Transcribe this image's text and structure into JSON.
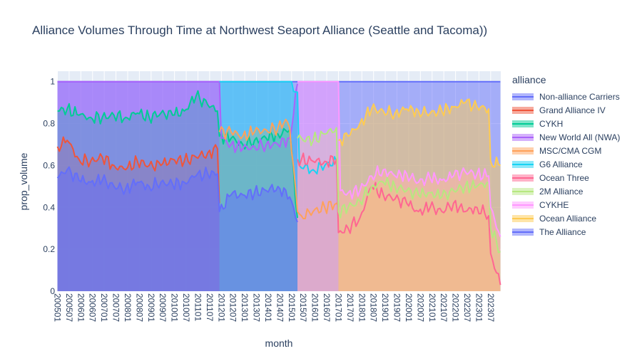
{
  "title": "Alliance Volumes Through Time at Northwest Seaport Alliance (Seattle and Tacoma))",
  "chart_data": {
    "type": "area",
    "title": "Alliance Volumes Through Time at Northwest Seaport Alliance (Seattle and Tacoma))",
    "xlabel": "month",
    "ylabel": "prop_volume",
    "ylim": [
      0,
      1.05
    ],
    "yticks": [
      0,
      0.2,
      0.4,
      0.6,
      0.8,
      1
    ],
    "ytick_labels": [
      "0",
      "0.2",
      "0.4",
      "0.6",
      "0.8",
      "1"
    ],
    "x_start": "200501",
    "x_end": "202312",
    "xtick_labels": [
      "200501",
      "200507",
      "200601",
      "200607",
      "200701",
      "200707",
      "200801",
      "200807",
      "200901",
      "200907",
      "201001",
      "201007",
      "201101",
      "201107",
      "201201",
      "201207",
      "201301",
      "201307",
      "201401",
      "201407",
      "201501",
      "201507",
      "201601",
      "201607",
      "201701",
      "201707",
      "201801",
      "201807",
      "201901",
      "201907",
      "202001",
      "202007",
      "202101",
      "202107",
      "202201",
      "202207",
      "202301",
      "202307"
    ],
    "stack_mode": "cumulative",
    "grid": true,
    "legend_title": "alliance",
    "legend_position": "right",
    "series": [
      {
        "name": "Non-alliance Carriers",
        "color": "#636efa",
        "knots": [
          [
            "200501",
            1.0
          ],
          [
            "202312",
            1.0
          ]
        ]
      },
      {
        "name": "Grand Alliance IV",
        "color": "#EF553B",
        "knots": [
          [
            "200501",
            0.69
          ],
          [
            "200506",
            0.72
          ],
          [
            "200512",
            0.63
          ],
          [
            "200606",
            0.62
          ],
          [
            "200612",
            0.64
          ],
          [
            "200706",
            0.6
          ],
          [
            "200712",
            0.58
          ],
          [
            "200806",
            0.62
          ],
          [
            "200812",
            0.6
          ],
          [
            "200906",
            0.6
          ],
          [
            "200912",
            0.63
          ],
          [
            "201006",
            0.62
          ],
          [
            "201012",
            0.64
          ],
          [
            "201106",
            0.66
          ],
          [
            "201111",
            0.68
          ],
          [
            "201112",
            0.42
          ]
        ]
      },
      {
        "name": "CYKH",
        "color": "#00cc96",
        "knots": [
          [
            "200501",
            0.86
          ],
          [
            "200506",
            0.87
          ],
          [
            "200512",
            0.84
          ],
          [
            "200606",
            0.83
          ],
          [
            "200612",
            0.83
          ],
          [
            "200706",
            0.84
          ],
          [
            "200712",
            0.83
          ],
          [
            "200806",
            0.85
          ],
          [
            "200812",
            0.83
          ],
          [
            "200906",
            0.85
          ],
          [
            "200912",
            0.84
          ],
          [
            "201006",
            0.86
          ],
          [
            "201012",
            0.93
          ],
          [
            "201106",
            0.89
          ],
          [
            "201111",
            0.86
          ],
          [
            "201112",
            0.74
          ],
          [
            "201206",
            0.73
          ],
          [
            "201212",
            0.7
          ],
          [
            "201306",
            0.72
          ],
          [
            "201312",
            0.73
          ],
          [
            "201406",
            0.75
          ],
          [
            "201412",
            0.77
          ],
          [
            "201504",
            0.35
          ]
        ]
      },
      {
        "name": "New World All (NWA)",
        "color": "#ab63fa",
        "knots": [
          [
            "200501",
            1.0
          ],
          [
            "201112",
            1.0
          ],
          [
            "201201",
            0.73
          ],
          [
            "201206",
            0.7
          ],
          [
            "201212",
            0.68
          ],
          [
            "201306",
            0.69
          ],
          [
            "201312",
            0.7
          ],
          [
            "201406",
            0.7
          ],
          [
            "201412",
            0.73
          ],
          [
            "201504",
            0.99
          ]
        ]
      },
      {
        "name": "MSC/CMA CGM",
        "color": "#FFA15A",
        "knots": [
          [
            "201112",
            0.76
          ],
          [
            "201206",
            0.76
          ],
          [
            "201212",
            0.74
          ],
          [
            "201306",
            0.76
          ],
          [
            "201312",
            0.77
          ],
          [
            "201406",
            0.78
          ],
          [
            "201410",
            0.82
          ],
          [
            "201412",
            0.78
          ],
          [
            "201504",
            0.38
          ],
          [
            "201506",
            0.36
          ],
          [
            "201512",
            0.38
          ],
          [
            "201606",
            0.4
          ],
          [
            "201612",
            0.42
          ],
          [
            "201701",
            0.41
          ]
        ]
      },
      {
        "name": "G6 Alliance",
        "color": "#19d3f3",
        "knots": [
          [
            "201112",
            1.0
          ],
          [
            "201412",
            1.0
          ],
          [
            "201504",
            0.95
          ],
          [
            "201505",
            0.6
          ],
          [
            "201512",
            0.58
          ],
          [
            "201606",
            0.6
          ],
          [
            "201612",
            0.62
          ],
          [
            "201701",
            0.4
          ]
        ]
      },
      {
        "name": "Ocean Three",
        "color": "#FF6692",
        "knots": [
          [
            "201504",
            0.63
          ],
          [
            "201512",
            0.62
          ],
          [
            "201606",
            0.62
          ],
          [
            "201612",
            0.63
          ],
          [
            "201701",
            0.28
          ],
          [
            "201706",
            0.3
          ],
          [
            "201712",
            0.35
          ],
          [
            "201806",
            0.5
          ],
          [
            "201812",
            0.46
          ],
          [
            "201906",
            0.44
          ],
          [
            "201912",
            0.42
          ],
          [
            "202006",
            0.38
          ],
          [
            "202012",
            0.4
          ],
          [
            "202106",
            0.38
          ],
          [
            "202112",
            0.42
          ],
          [
            "202206",
            0.38
          ],
          [
            "202212",
            0.4
          ],
          [
            "202306",
            0.36
          ],
          [
            "202307",
            0.18
          ],
          [
            "202312",
            0.03
          ]
        ]
      },
      {
        "name": "2M Alliance",
        "color": "#B6E880",
        "knots": [
          [
            "201504",
            0.73
          ],
          [
            "201512",
            0.72
          ],
          [
            "201606",
            0.75
          ],
          [
            "201612",
            0.78
          ],
          [
            "201701",
            0.38
          ],
          [
            "201706",
            0.4
          ],
          [
            "201712",
            0.43
          ],
          [
            "201806",
            0.5
          ],
          [
            "201812",
            0.52
          ],
          [
            "201906",
            0.5
          ],
          [
            "201912",
            0.48
          ],
          [
            "202006",
            0.46
          ],
          [
            "202012",
            0.47
          ],
          [
            "202106",
            0.45
          ],
          [
            "202112",
            0.48
          ],
          [
            "202206",
            0.5
          ],
          [
            "202212",
            0.5
          ],
          [
            "202306",
            0.52
          ],
          [
            "202307",
            0.3
          ],
          [
            "202312",
            0.19
          ]
        ]
      },
      {
        "name": "CYKHE",
        "color": "#FF97FF",
        "knots": [
          [
            "201504",
            1.0
          ],
          [
            "201701",
            1.0
          ],
          [
            "201702",
            0.48
          ],
          [
            "201706",
            0.47
          ],
          [
            "201712",
            0.48
          ],
          [
            "201806",
            0.55
          ],
          [
            "201812",
            0.58
          ],
          [
            "201906",
            0.55
          ],
          [
            "201912",
            0.56
          ],
          [
            "202006",
            0.52
          ],
          [
            "202012",
            0.54
          ],
          [
            "202106",
            0.53
          ],
          [
            "202112",
            0.55
          ],
          [
            "202206",
            0.57
          ],
          [
            "202212",
            0.56
          ],
          [
            "202306",
            0.55
          ],
          [
            "202307",
            0.4
          ],
          [
            "202312",
            0.26
          ]
        ]
      },
      {
        "name": "Ocean Alliance",
        "color": "#FECB52",
        "knots": [
          [
            "201701",
            0.72
          ],
          [
            "201706",
            0.74
          ],
          [
            "201712",
            0.8
          ],
          [
            "201806",
            0.87
          ],
          [
            "201812",
            0.86
          ],
          [
            "201906",
            0.85
          ],
          [
            "201912",
            0.87
          ],
          [
            "202006",
            0.86
          ],
          [
            "202012",
            0.85
          ],
          [
            "202106",
            0.86
          ],
          [
            "202112",
            0.88
          ],
          [
            "202206",
            0.9
          ],
          [
            "202212",
            0.88
          ],
          [
            "202306",
            0.87
          ],
          [
            "202307",
            0.62
          ],
          [
            "202312",
            0.6
          ]
        ]
      },
      {
        "name": "The Alliance",
        "color": "#636efa",
        "knots": [
          [
            "200501",
            0.54
          ],
          [
            "200506",
            0.58
          ],
          [
            "200512",
            0.53
          ],
          [
            "200606",
            0.52
          ],
          [
            "200612",
            0.53
          ],
          [
            "200706",
            0.5
          ],
          [
            "200712",
            0.49
          ],
          [
            "200806",
            0.52
          ],
          [
            "200812",
            0.5
          ],
          [
            "200906",
            0.52
          ],
          [
            "200912",
            0.51
          ],
          [
            "201006",
            0.52
          ],
          [
            "201012",
            0.55
          ],
          [
            "201106",
            0.56
          ],
          [
            "201111",
            0.56
          ],
          [
            "201112",
            0.38
          ],
          [
            "201206",
            0.46
          ],
          [
            "201212",
            0.46
          ],
          [
            "201306",
            0.47
          ],
          [
            "201312",
            0.48
          ],
          [
            "201406",
            0.5
          ],
          [
            "201412",
            0.45
          ],
          [
            "201504",
            0.33
          ]
        ]
      }
    ]
  }
}
